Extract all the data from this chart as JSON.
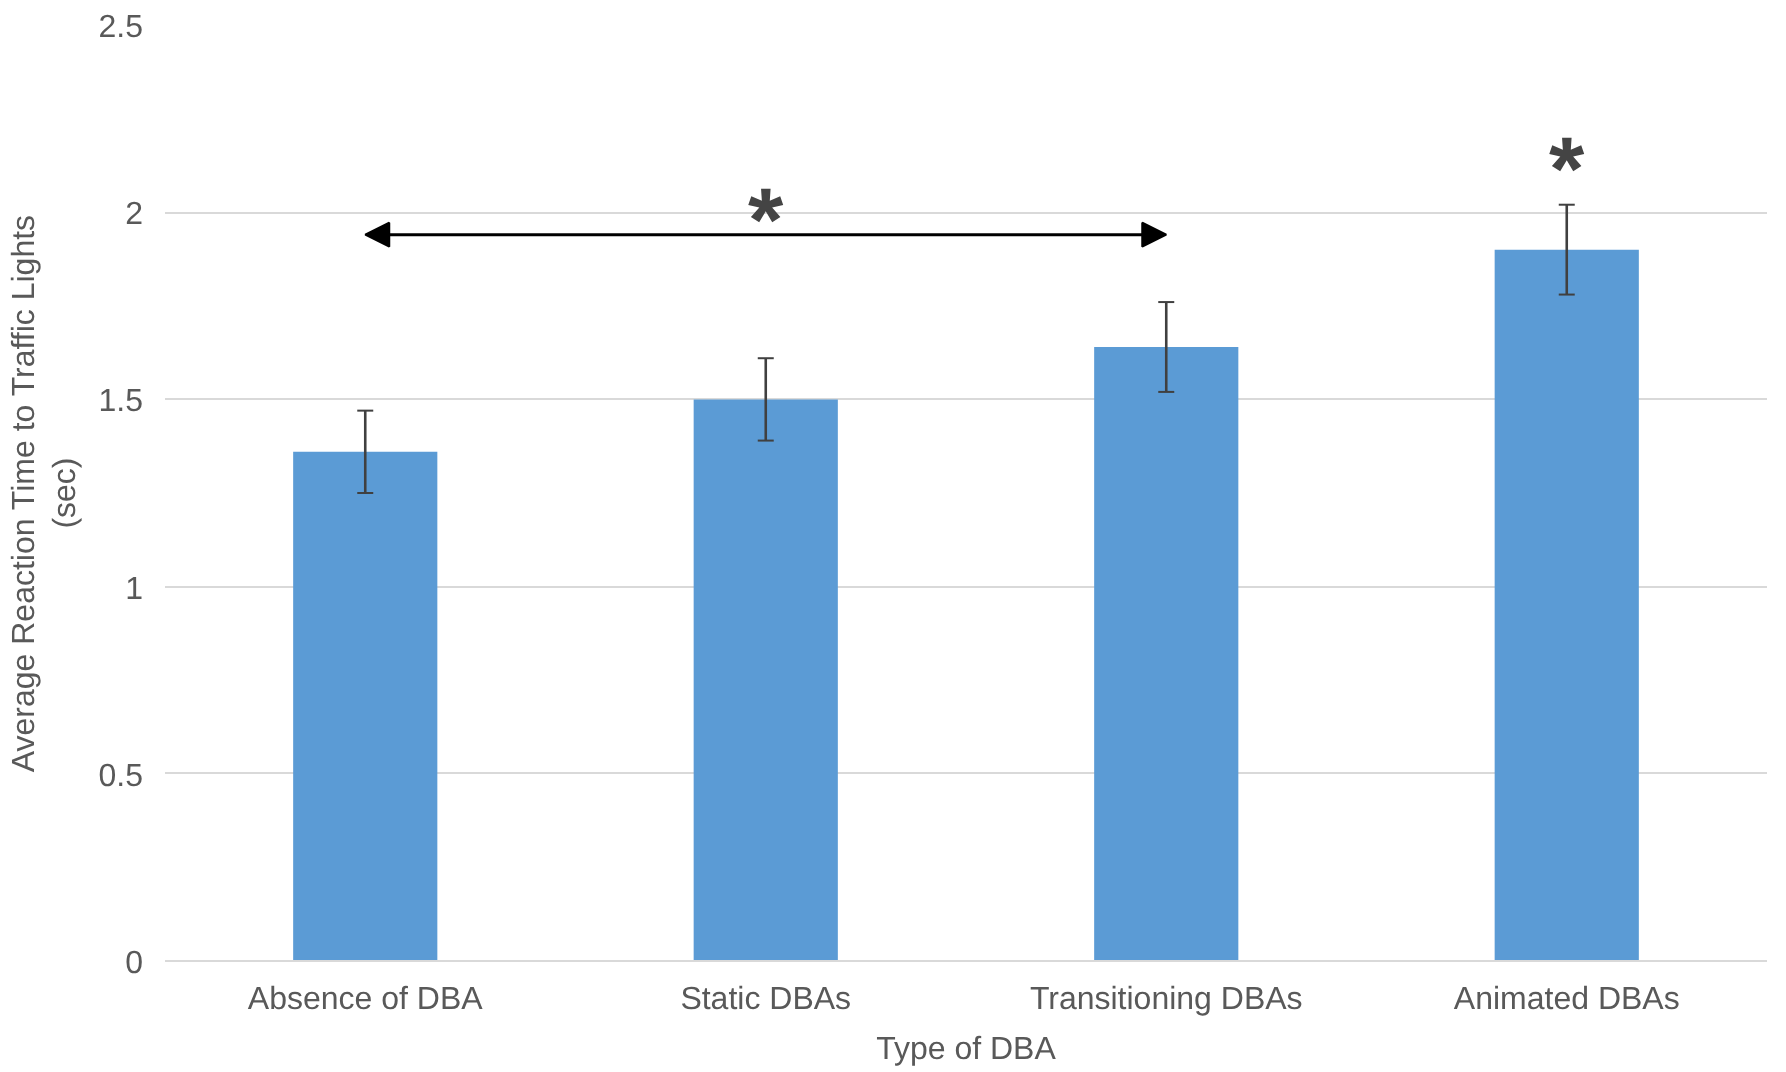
{
  "chart_data": {
    "type": "bar",
    "xlabel": "Type of DBA",
    "ylabel": "Average Reaction Time to Traffic Lights\n(sec)",
    "categories": [
      "Absence of DBA",
      "Static DBAs",
      "Transitioning DBAs",
      "Animated DBAs"
    ],
    "values": [
      1.36,
      1.5,
      1.64,
      1.9
    ],
    "errors": [
      0.11,
      0.11,
      0.12,
      0.12
    ],
    "color": "#5b9bd5",
    "ylim": [
      0,
      2.5
    ],
    "yticks": [
      0,
      0.5,
      1,
      1.5,
      2,
      2.5
    ],
    "grid": "y",
    "annotations": [
      "*",
      "*"
    ]
  }
}
